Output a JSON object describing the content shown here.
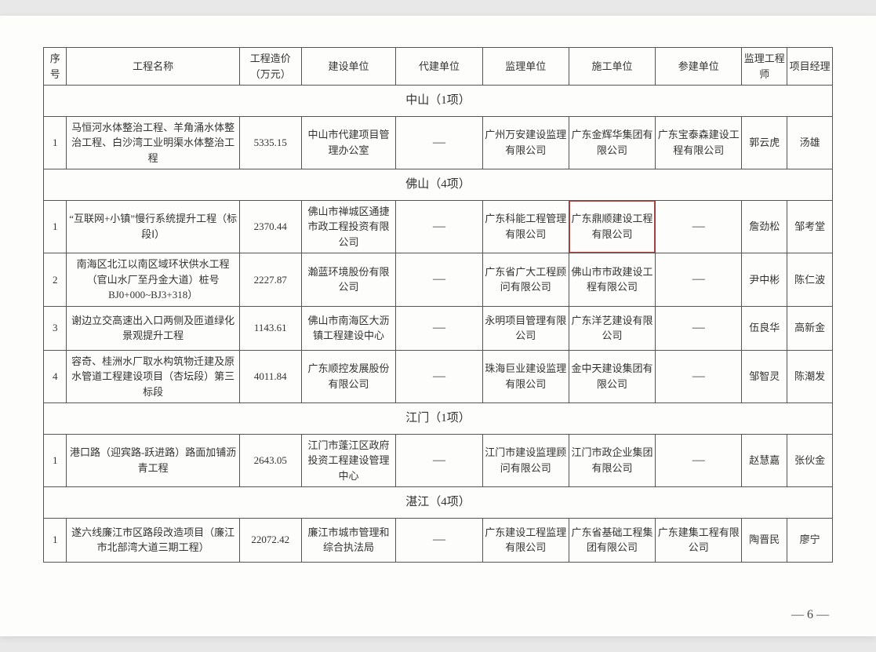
{
  "header": {
    "seq": "序号",
    "name": "工程名称",
    "cost": "工程造价（万元）",
    "construct_unit": "建设单位",
    "proxy_unit": "代建单位",
    "super_unit": "监理单位",
    "constructor_unit": "施工单位",
    "partic_unit": "参建单位",
    "super_eng": "监理工程师",
    "pm": "项目经理"
  },
  "sections": [
    {
      "title": "中山（1项）",
      "rows": [
        {
          "seq": "1",
          "name": "马恒河水体整治工程、羊角涌水体整治工程、白沙湾工业明渠水体整治工程",
          "cost": "5335.15",
          "construct_unit": "中山市代建项目管理办公室",
          "proxy_unit": "—",
          "super_unit": "广州万安建设监理有限公司",
          "constructor_unit": "广东金辉华集团有限公司",
          "partic_unit": "广东宝泰森建设工程有限公司",
          "super_eng": "郭云虎",
          "pm": "汤雄"
        }
      ]
    },
    {
      "title": "佛山（4项）",
      "rows": [
        {
          "seq": "1",
          "name": "“互联网+小镇”慢行系统提升工程（标段Ⅰ）",
          "cost": "2370.44",
          "construct_unit": "佛山市禅城区通捷市政工程投资有限公司",
          "proxy_unit": "—",
          "super_unit": "广东科能工程管理有限公司",
          "constructor_unit": "广东鼎顺建设工程有限公司",
          "partic_unit": "—",
          "super_eng": "詹劲松",
          "pm": "邹考堂",
          "highlight_constructor": true
        },
        {
          "seq": "2",
          "name": "南海区北江以南区域环状供水工程（官山水厂至丹金大道）桩号BJ0+000~BJ3+318）",
          "cost": "2227.87",
          "construct_unit": "瀚蓝环境股份有限公司",
          "proxy_unit": "—",
          "super_unit": "广东省广大工程顾问有限公司",
          "constructor_unit": "佛山市市政建设工程有限公司",
          "partic_unit": "—",
          "super_eng": "尹中彬",
          "pm": "陈仁波"
        },
        {
          "seq": "3",
          "name": "谢边立交高速出入口两侧及匝道绿化景观提升工程",
          "cost": "1143.61",
          "construct_unit": "佛山市南海区大沥镇工程建设中心",
          "proxy_unit": "—",
          "super_unit": "永明项目管理有限公司",
          "constructor_unit": "广东洋艺建设有限公司",
          "partic_unit": "—",
          "super_eng": "伍良华",
          "pm": "高新金"
        },
        {
          "seq": "4",
          "name": "容奇、桂洲水厂取水构筑物迁建及原水管道工程建设项目（杏坛段）第三标段",
          "cost": "4011.84",
          "construct_unit": "广东顺控发展股份有限公司",
          "proxy_unit": "—",
          "super_unit": "珠海巨业建设监理有限公司",
          "constructor_unit": "金中天建设集团有限公司",
          "partic_unit": "—",
          "super_eng": "邹智灵",
          "pm": "陈潮发"
        }
      ]
    },
    {
      "title": "江门（1项）",
      "rows": [
        {
          "seq": "1",
          "name": "港口路（迎宾路-跃进路）路面加铺沥青工程",
          "cost": "2643.05",
          "construct_unit": "江门市蓬江区政府投资工程建设管理中心",
          "proxy_unit": "—",
          "super_unit": "江门市建设监理顾问有限公司",
          "constructor_unit": "江门市政企业集团有限公司",
          "partic_unit": "—",
          "super_eng": "赵慧嘉",
          "pm": "张伙金"
        }
      ]
    },
    {
      "title": "湛江（4项）",
      "rows": [
        {
          "seq": "1",
          "name": "遂六线廉江市区路段改造项目（廉江市北部湾大道三期工程）",
          "cost": "22072.42",
          "construct_unit": "廉江市城市管理和综合执法局",
          "proxy_unit": "—",
          "super_unit": "广东建设工程监理有限公司",
          "constructor_unit": "广东省基础工程集团有限公司",
          "partic_unit": "广东建集工程有限公司",
          "super_eng": "陶晋民",
          "pm": "廖宁"
        }
      ]
    }
  ],
  "page_number": "— 6 —"
}
